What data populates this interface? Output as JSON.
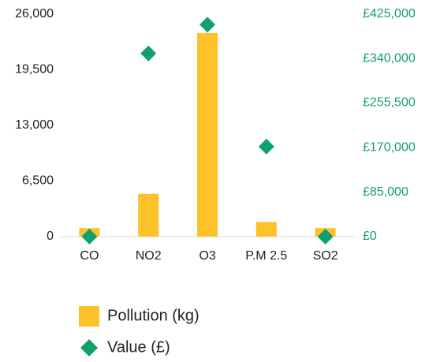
{
  "chart_data": {
    "type": "bar",
    "categories": [
      "CO",
      "NO2",
      "O3",
      "P.M 2.5",
      "SO2"
    ],
    "series": [
      {
        "name": "Pollution (kg)",
        "type": "bar",
        "color": "#fdc12a",
        "values": [
          1000,
          5000,
          23800,
          1700,
          1000
        ]
      },
      {
        "name": "Value (£)",
        "type": "scatter",
        "axis": "y2",
        "color": "#12a06a",
        "values": [
          0,
          350000,
          405000,
          172000,
          0
        ]
      }
    ],
    "ylim": [
      0,
      26000
    ],
    "yticks": [
      0,
      {
        "value": 6500,
        "label": "6,500"
      },
      {
        "value": 13000,
        "label": "13,000"
      },
      {
        "value": 19500,
        "label": "19,500"
      },
      {
        "value": 26000,
        "label": "26,000"
      }
    ],
    "y2lim": [
      0,
      425000
    ],
    "y2ticks": [
      {
        "value": 0,
        "label": "£0"
      },
      {
        "value": 85000,
        "label": "£85,000"
      },
      {
        "value": 170000,
        "label": "£170,000"
      },
      {
        "value": 255500,
        "label": "£255,500"
      },
      {
        "value": 340000,
        "label": "£340,000"
      },
      {
        "value": 425000,
        "label": "£425,000"
      }
    ],
    "y2tick_color": "#12a06a",
    "grid": false,
    "legend": "bottom"
  }
}
